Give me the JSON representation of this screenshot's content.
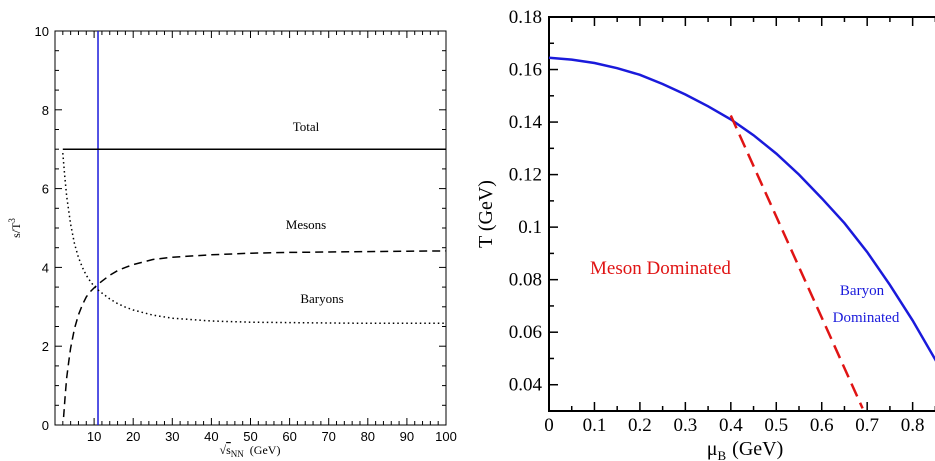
{
  "chart_data": [
    {
      "type": "line",
      "title": "",
      "xlabel": "√s_NN (GeV)",
      "xlabel_prefix": "√",
      "xlabel_var": "s",
      "xlabel_sub": "NN",
      "xlabel_unit": "(GeV)",
      "ylabel": "s/T^3",
      "ylabel_base": "s/T",
      "ylabel_sup": "3",
      "xlim": [
        0,
        100
      ],
      "ylim": [
        0,
        10
      ],
      "xticks": [
        10,
        20,
        30,
        40,
        50,
        60,
        70,
        80,
        90,
        100
      ],
      "yticks": [
        0,
        2,
        4,
        6,
        8,
        10
      ],
      "vertical_line": {
        "x": 11,
        "color": "#1a1adb"
      },
      "series": [
        {
          "name": "Total",
          "style": "solid",
          "x": [
            2,
            5,
            10,
            20,
            30,
            40,
            50,
            60,
            70,
            80,
            90,
            100
          ],
          "values": [
            7,
            7,
            7,
            7,
            7,
            7,
            7,
            7,
            7,
            7,
            7,
            7
          ]
        },
        {
          "name": "Mesons",
          "style": "dashed",
          "x": [
            2.2,
            2.6,
            3,
            3.5,
            4,
            5,
            6,
            7,
            8,
            9,
            10,
            11,
            12,
            14,
            16,
            18,
            20,
            25,
            30,
            40,
            50,
            60,
            70,
            80,
            90,
            100
          ],
          "values": [
            0.2,
            0.75,
            1.2,
            1.6,
            1.95,
            2.45,
            2.8,
            3.05,
            3.25,
            3.38,
            3.48,
            3.57,
            3.65,
            3.8,
            3.92,
            4.0,
            4.07,
            4.2,
            4.26,
            4.32,
            4.36,
            4.38,
            4.39,
            4.4,
            4.41,
            4.42
          ]
        },
        {
          "name": "Baryons",
          "style": "dotted",
          "x": [
            2,
            2.5,
            3,
            4,
            5,
            6,
            7,
            8,
            9,
            10,
            11,
            12,
            14,
            16,
            18,
            20,
            25,
            30,
            40,
            50,
            60,
            70,
            80,
            90,
            100
          ],
          "values": [
            6.9,
            6.3,
            5.8,
            5.1,
            4.6,
            4.25,
            4.0,
            3.8,
            3.65,
            3.52,
            3.43,
            3.35,
            3.2,
            3.08,
            2.99,
            2.92,
            2.79,
            2.71,
            2.64,
            2.61,
            2.6,
            2.59,
            2.58,
            2.58,
            2.58
          ]
        }
      ],
      "annotations": [
        "Total",
        "Mesons",
        "Baryons"
      ]
    },
    {
      "type": "line",
      "title": "",
      "xlabel": "μ_B (GeV)",
      "xlabel_var": "μ",
      "xlabel_sub": "B",
      "xlabel_unit": "(GeV)",
      "ylabel": "T (GeV)",
      "xlim": [
        0,
        0.88
      ],
      "ylim": [
        0.03,
        0.18
      ],
      "xticks": [
        0,
        0.1,
        0.2,
        0.3,
        0.4,
        0.5,
        0.6,
        0.7,
        0.8
      ],
      "xtick_labels": [
        "0",
        "0.1",
        "0.2",
        "0.3",
        "0.4",
        "0.5",
        "0.6",
        "0.7",
        "0.8"
      ],
      "yticks": [
        0.04,
        0.06,
        0.08,
        0.1,
        0.12,
        0.14,
        0.16,
        0.18
      ],
      "ytick_labels": [
        "0.04",
        "0.06",
        "0.08",
        "0.1",
        "0.12",
        "0.14",
        "0.16",
        "0.18"
      ],
      "series": [
        {
          "style": "solid",
          "color": "#1a1adb",
          "x": [
            0,
            0.05,
            0.1,
            0.15,
            0.2,
            0.25,
            0.3,
            0.35,
            0.4,
            0.45,
            0.5,
            0.55,
            0.6,
            0.65,
            0.7,
            0.75,
            0.8,
            0.85,
            0.88
          ],
          "values": [
            0.1645,
            0.1638,
            0.1625,
            0.1605,
            0.158,
            0.1545,
            0.1505,
            0.146,
            0.141,
            0.135,
            0.128,
            0.12,
            0.111,
            0.1015,
            0.0905,
            0.078,
            0.0645,
            0.0495,
            0.0405
          ]
        },
        {
          "style": "dashed",
          "color": "#e01414",
          "x": [
            0.4,
            0.69
          ],
          "values": [
            0.1425,
            0.031
          ]
        }
      ],
      "annotations": [
        {
          "text": "Meson Dominated",
          "color": "#e01414"
        },
        {
          "text": "Baryon",
          "color": "#1a1adb"
        },
        {
          "text": "Dominated",
          "color": "#1a1adb"
        }
      ]
    }
  ]
}
